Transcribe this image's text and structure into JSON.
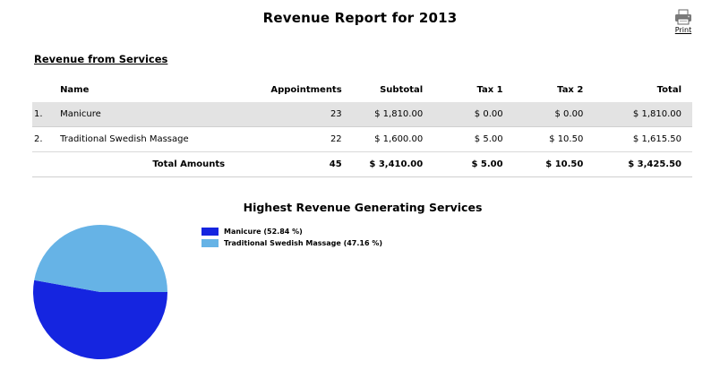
{
  "report": {
    "title": "Revenue Report for 2013",
    "print_label": "Print",
    "section_title": "Revenue from Services"
  },
  "table": {
    "headers": {
      "name": "Name",
      "appointments": "Appointments",
      "subtotal": "Subtotal",
      "tax1": "Tax 1",
      "tax2": "Tax 2",
      "total": "Total"
    },
    "rows": [
      {
        "no": "1.",
        "name": "Manicure",
        "appointments": "23",
        "subtotal": "$ 1,810.00",
        "tax1": "$ 0.00",
        "tax2": "$ 0.00",
        "total": "$ 1,810.00"
      },
      {
        "no": "2.",
        "name": "Traditional Swedish Massage",
        "appointments": "22",
        "subtotal": "$ 1,600.00",
        "tax1": "$ 5.00",
        "tax2": "$ 10.50",
        "total": "$ 1,615.50"
      }
    ],
    "totals": {
      "label": "Total Amounts",
      "appointments": "45",
      "subtotal": "$ 3,410.00",
      "tax1": "$ 5.00",
      "tax2": "$ 10.50",
      "total": "$ 3,425.50"
    }
  },
  "chart_data": {
    "type": "pie",
    "title": "Highest Revenue Generating Services",
    "slices": [
      {
        "label": "Manicure (52.84 %)",
        "value": 52.84,
        "color": "#1525e0"
      },
      {
        "label": "Traditional Swedish Massage (47.16 %)",
        "value": 47.16,
        "color": "#66b3e6"
      }
    ],
    "legend_position": "right"
  },
  "colors": {
    "row_shade": "#e3e3e3",
    "divider": "#d9d9d9"
  },
  "icons": {
    "print": "printer-icon"
  }
}
